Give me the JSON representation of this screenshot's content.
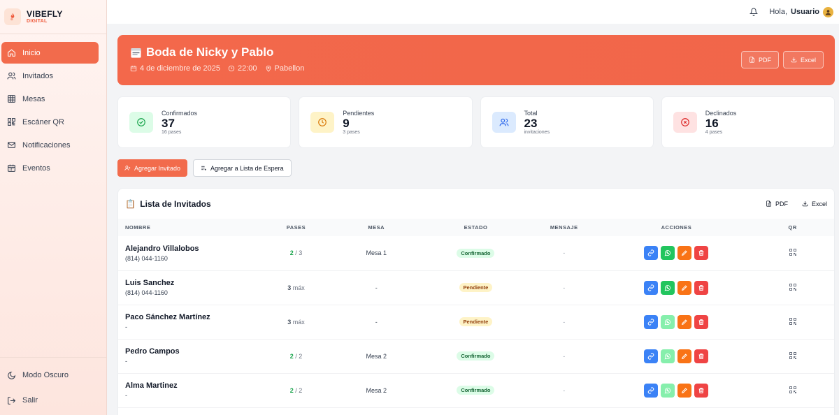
{
  "brand": {
    "name": "VIBEFLY",
    "subtitle": "DIGITAL"
  },
  "sidebar": {
    "items": [
      {
        "label": "Inicio",
        "icon": "home-icon",
        "active": true
      },
      {
        "label": "Invitados",
        "icon": "users-icon"
      },
      {
        "label": "Mesas",
        "icon": "table-icon"
      },
      {
        "label": "Escáner QR",
        "icon": "qr-scan-icon"
      },
      {
        "label": "Notificaciones",
        "icon": "mail-icon"
      },
      {
        "label": "Eventos",
        "icon": "calendar-icon"
      }
    ],
    "bottom": [
      {
        "label": "Modo Oscuro",
        "icon": "moon-icon"
      },
      {
        "label": "Salir",
        "icon": "logout-icon"
      }
    ]
  },
  "topbar": {
    "greeting": "Hola,",
    "user": "Usuario"
  },
  "event": {
    "title": "Boda de Nicky y Pablo",
    "date": "4 de diciembre de 2025",
    "time": "22:00",
    "place": "Pabellon",
    "pdf_label": "PDF",
    "excel_label": "Excel"
  },
  "stats": [
    {
      "label": "Confirmados",
      "value": "37",
      "sub": "16 pases",
      "color": "#16a34a"
    },
    {
      "label": "Pendientes",
      "value": "9",
      "sub": "3 pases",
      "color": "#d97706"
    },
    {
      "label": "Total",
      "value": "23",
      "sub": "invitaciones",
      "color": "#2563eb"
    },
    {
      "label": "Declinados",
      "value": "16",
      "sub": "4 pases",
      "color": "#dc2626"
    }
  ],
  "actions": {
    "add_guest": "Agregar Invitado",
    "add_waitlist": "Agregar a Lista de Espera"
  },
  "guest_list": {
    "title": "Lista de Invitados",
    "pdf_label": "PDF",
    "excel_label": "Excel",
    "columns": [
      "NOMBRE",
      "PASES",
      "MESA",
      "ESTADO",
      "MENSAJE",
      "ACCIONES",
      "QR"
    ],
    "rows": [
      {
        "name": "Alejandro Villalobos",
        "phone": "(814) 044-1160",
        "pases_used": "2",
        "pases_rest": "/ 3",
        "mesa": "Mesa 1",
        "estado": "Confirmado",
        "mensaje": "-"
      },
      {
        "name": "Luis Sanchez",
        "phone": "(814) 044-1160",
        "pases_used": "3",
        "pases_rest": "máx",
        "mesa": "-",
        "estado": "Pendiente",
        "mensaje": "-"
      },
      {
        "name": "Paco Sánchez Martínez",
        "phone": "-",
        "pases_used": "3",
        "pases_rest": "máx",
        "mesa": "-",
        "estado": "Pendiente",
        "mensaje": "-"
      },
      {
        "name": "Pedro Campos",
        "phone": "-",
        "pases_used": "2",
        "pases_rest": "/ 2",
        "mesa": "Mesa 2",
        "estado": "Confirmado",
        "mensaje": "-"
      },
      {
        "name": "Alma Martinez",
        "phone": "-",
        "pases_used": "2",
        "pases_rest": "/ 2",
        "mesa": "Mesa 2",
        "estado": "Confirmado",
        "mensaje": "-"
      }
    ]
  },
  "colors": {
    "accent": "#f26b4c",
    "confirmed": "#16a34a",
    "pending": "#92400e"
  }
}
